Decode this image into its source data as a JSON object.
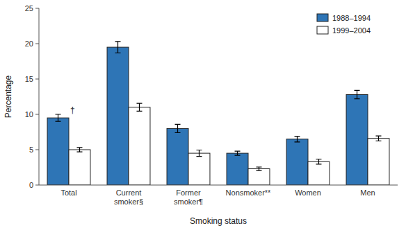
{
  "chart_data": {
    "type": "bar",
    "categories": [
      "Total",
      "Current\nsmoker§",
      "Former\nsmoker¶",
      "Nonsmoker**",
      "Women",
      "Men"
    ],
    "series": [
      {
        "name": "1988–1994",
        "color": "#2E75B6",
        "values": [
          9.5,
          19.5,
          8.0,
          4.5,
          6.5,
          12.8
        ],
        "errors": [
          0.5,
          0.8,
          0.6,
          0.3,
          0.4,
          0.6
        ]
      },
      {
        "name": "1999–2004",
        "color": "#FFFFFF",
        "values": [
          5.0,
          11.0,
          4.5,
          2.3,
          3.3,
          6.6
        ],
        "errors": [
          0.3,
          0.55,
          0.45,
          0.25,
          0.35,
          0.35
        ]
      }
    ],
    "xlabel": "Smoking status",
    "ylabel": "Percentage",
    "ylim": [
      0,
      25
    ],
    "yticks": [
      0,
      5,
      10,
      15,
      20,
      25
    ],
    "annotations": [
      "†"
    ],
    "legend": "upper right",
    "grid": false
  }
}
